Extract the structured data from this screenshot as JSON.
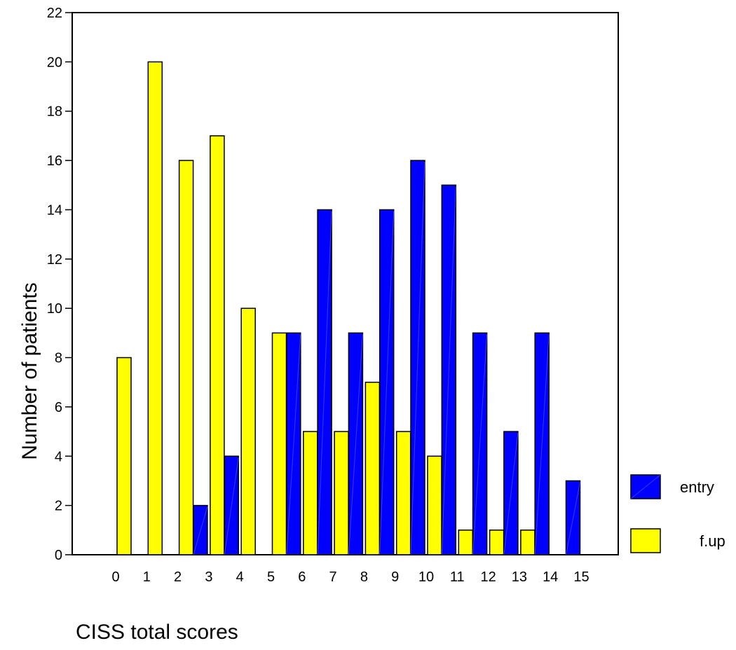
{
  "chart_data": {
    "type": "bar",
    "title": "",
    "xlabel": "CISS total scores",
    "ylabel": "Number of patients",
    "categories": [
      "0",
      "1",
      "2",
      "3",
      "4",
      "5",
      "6",
      "7",
      "8",
      "9",
      "10",
      "11",
      "12",
      "13",
      "14",
      "15"
    ],
    "series": [
      {
        "name": "entry",
        "values": [
          0,
          0,
          0,
          2,
          4,
          0,
          9,
          14,
          9,
          14,
          16,
          15,
          9,
          5,
          9,
          3
        ],
        "color": "#0000FF"
      },
      {
        "name": "f.up",
        "values": [
          8,
          20,
          16,
          17,
          10,
          9,
          5,
          5,
          7,
          5,
          4,
          1,
          1,
          1,
          0,
          0
        ],
        "color": "#FFFF00"
      }
    ],
    "yticks": [
      0,
      2,
      4,
      6,
      8,
      10,
      12,
      14,
      16,
      18,
      20,
      22
    ],
    "ylim": [
      0,
      22
    ],
    "grid": false,
    "legend_position": "right"
  }
}
